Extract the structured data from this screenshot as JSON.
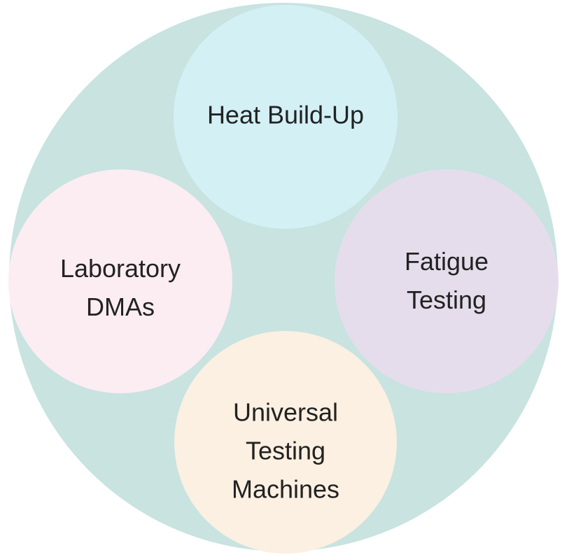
{
  "nodes": [
    {
      "lines": [
        "Heat Build-Up"
      ]
    },
    {
      "lines": [
        "Laboratory",
        "DMAs"
      ]
    },
    {
      "lines": [
        "Fatigue",
        "Testing"
      ]
    },
    {
      "lines": [
        "Universal",
        "Testing",
        "Machines"
      ]
    }
  ]
}
